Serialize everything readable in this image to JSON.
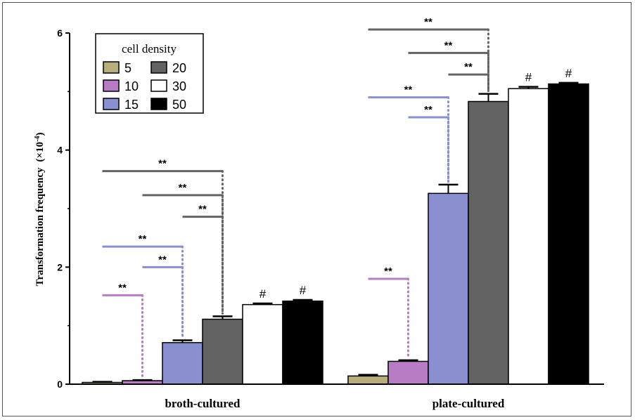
{
  "chart_data": {
    "type": "bar",
    "title": "",
    "ylabel": "Transformation frequency",
    "ylabel_unit_prefix": "(×10",
    "ylabel_unit_exp": "-4",
    "ylabel_unit_suffix": ")",
    "ylim": [
      0,
      6
    ],
    "yticks": [
      "0",
      "2",
      "4",
      "6"
    ],
    "categories": [
      "broth-cultured",
      "plate-cultured"
    ],
    "legend_title": "cell density",
    "legend_placement": "top-left",
    "series": [
      {
        "name": "5",
        "color": "#b8ad7c",
        "values": [
          0.03,
          0.14
        ],
        "errors": [
          0.01,
          0.02
        ]
      },
      {
        "name": "10",
        "color": "#b77cc3",
        "values": [
          0.06,
          0.39
        ],
        "errors": [
          0.01,
          0.02
        ]
      },
      {
        "name": "15",
        "color": "#8a8fcf",
        "values": [
          0.71,
          3.26
        ],
        "errors": [
          0.04,
          0.15
        ]
      },
      {
        "name": "20",
        "color": "#636363",
        "values": [
          1.11,
          4.83
        ],
        "errors": [
          0.05,
          0.13
        ]
      },
      {
        "name": "30",
        "color": "#ffffff",
        "values": [
          1.36,
          5.05
        ],
        "errors": [
          0.02,
          0.03
        ]
      },
      {
        "name": "50",
        "color": "#000000",
        "values": [
          1.42,
          5.13
        ],
        "errors": [
          0.02,
          0.02
        ]
      }
    ],
    "hash_marks": [
      {
        "group": 0,
        "series": 4,
        "label": "#"
      },
      {
        "group": 0,
        "series": 5,
        "label": "#"
      },
      {
        "group": 1,
        "series": 4,
        "label": "#"
      },
      {
        "group": 1,
        "series": 5,
        "label": "#"
      }
    ],
    "significance": [
      {
        "group": 0,
        "from": 0,
        "to": 1,
        "y": 1.52,
        "label": "**"
      },
      {
        "group": 0,
        "from": 1,
        "to": 2,
        "y": 2.0,
        "label": "**"
      },
      {
        "group": 0,
        "from": 0,
        "to": 2,
        "y": 2.35,
        "label": "**"
      },
      {
        "group": 0,
        "from": 2,
        "to": 3,
        "y": 2.86,
        "label": "**"
      },
      {
        "group": 0,
        "from": 1,
        "to": 3,
        "y": 3.23,
        "label": "**"
      },
      {
        "group": 0,
        "from": 0,
        "to": 3,
        "y": 3.64,
        "label": "**"
      },
      {
        "group": 1,
        "from": 0,
        "to": 1,
        "y": 1.8,
        "label": "**"
      },
      {
        "group": 1,
        "from": 1,
        "to": 2,
        "y": 4.56,
        "label": "**"
      },
      {
        "group": 1,
        "from": 0,
        "to": 2,
        "y": 4.9,
        "label": "**"
      },
      {
        "group": 1,
        "from": 2,
        "to": 3,
        "y": 5.29,
        "label": "**"
      },
      {
        "group": 1,
        "from": 1,
        "to": 3,
        "y": 5.66,
        "label": "**"
      },
      {
        "group": 1,
        "from": 0,
        "to": 3,
        "y": 6.06,
        "label": "**"
      }
    ],
    "grid": false
  }
}
